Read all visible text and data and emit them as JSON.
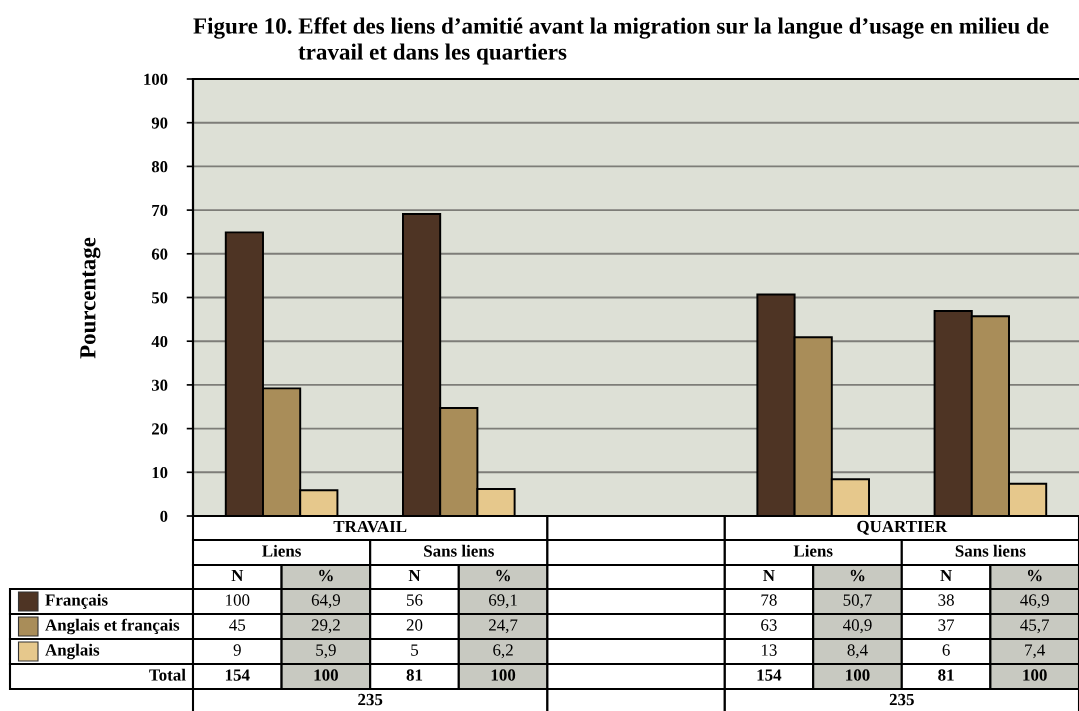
{
  "chart_data": {
    "type": "bar",
    "title": "Figure 10. Effet des liens d’amitié avant la migration sur la langue d’usage en milieu de\ntravail et dans les quartiers",
    "ylabel": "Pourcentage",
    "categories": [
      "Liens",
      "Sans liens",
      null,
      "Liens",
      "Sans liens"
    ],
    "series": [
      {
        "name": "Français",
        "color": "#4e3424",
        "values": [
          64.9,
          69.1,
          null,
          50.7,
          46.9
        ],
        "value_labels": [
          "64,9",
          "69,1",
          null,
          "50,7",
          "46,9"
        ]
      },
      {
        "name": "Anglais et français",
        "color": "#a98d59",
        "values": [
          29.2,
          24.7,
          null,
          40.9,
          45.7
        ],
        "value_labels": [
          "29,2",
          "24,7",
          null,
          "40,9",
          "45,7"
        ]
      },
      {
        "name": "Anglais",
        "color": "#e6c88c",
        "values": [
          5.9,
          6.2,
          null,
          8.4,
          7.4
        ],
        "value_labels": [
          "5,9",
          "6,2",
          null,
          "8,4",
          "7,4"
        ]
      }
    ],
    "ylim": [
      0,
      100
    ],
    "yticks": [
      0,
      10,
      20,
      30,
      40,
      50,
      60,
      70,
      80,
      90,
      100
    ],
    "grid": "y",
    "legend": "bottom left",
    "annotations": [
      "TRAVAIL",
      "QUARTIER",
      "N",
      "%",
      "100",
      "56",
      "78",
      "38",
      "45",
      "20",
      "63",
      "37",
      "9",
      "5",
      "13",
      "6",
      "Total",
      "154",
      "100",
      "81",
      "100",
      "154",
      "100",
      "81",
      "100",
      "235",
      "235"
    ]
  }
}
